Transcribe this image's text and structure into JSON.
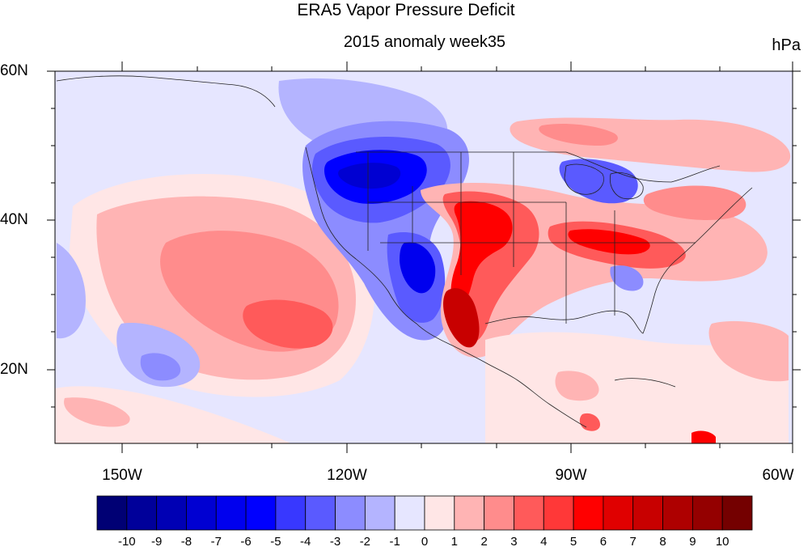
{
  "title": "ERA5 Vapor Pressure Deficit",
  "subtitle": "2015 anomaly week35",
  "units": "hPa",
  "lat_labels": [
    "60N",
    "40N",
    "20N"
  ],
  "lon_labels": [
    "150W",
    "120W",
    "90W",
    "60W"
  ],
  "colorbar": {
    "labels": [
      "-10",
      "-9",
      "-8",
      "-7",
      "-6",
      "-5",
      "-4",
      "-3",
      "-2",
      "-1",
      "0",
      "1",
      "2",
      "3",
      "4",
      "5",
      "6",
      "7",
      "8",
      "9",
      "10"
    ],
    "colors": [
      "#000074",
      "#00009a",
      "#0000b4",
      "#0000d2",
      "#0000ee",
      "#0000ff",
      "#3838ff",
      "#5a5aff",
      "#8c8cff",
      "#b4b4ff",
      "#e6e6ff",
      "#ffe6e6",
      "#ffb4b4",
      "#ff8c8c",
      "#ff5a5a",
      "#ff3838",
      "#ff0000",
      "#e00000",
      "#c80000",
      "#ae0000",
      "#940000",
      "#740000"
    ]
  },
  "colors": {
    "background": "#ffffff",
    "ocean_base": "#e6e6ff",
    "land_outline": "#222222"
  }
}
